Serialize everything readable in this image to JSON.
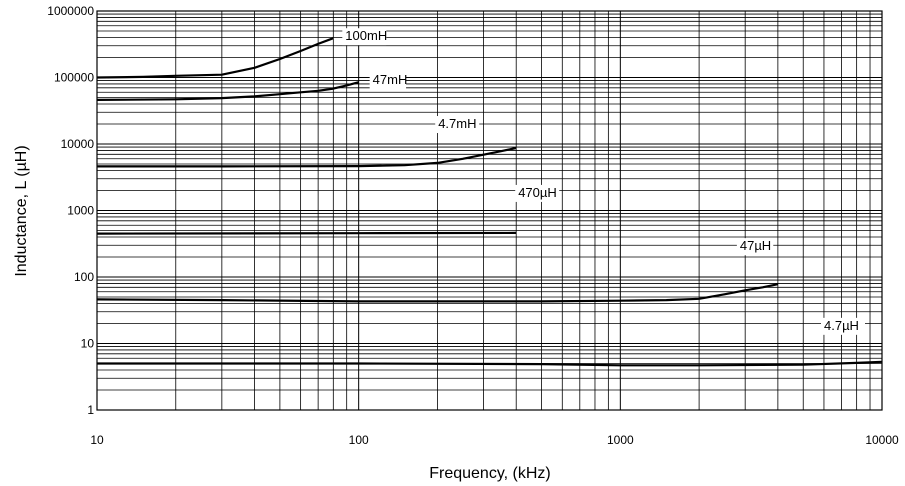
{
  "chart_data": {
    "type": "line",
    "title": "",
    "xlabel": "Frequency, (kHz)",
    "ylabel": "Inductance, L (µH)",
    "xscale": "log",
    "yscale": "log",
    "xlim": [
      10,
      10000
    ],
    "ylim": [
      1,
      1000000
    ],
    "grid": true,
    "legend": "inline labels at series ends",
    "x_ticks": [
      "10",
      "100",
      "1000",
      "10000"
    ],
    "y_ticks": [
      "1",
      "10",
      "100",
      "1000",
      "10000",
      "100000",
      "1000000"
    ],
    "line_color": "#000000",
    "series": [
      {
        "name": "100mH",
        "points": [
          [
            10,
            100000
          ],
          [
            15,
            102000
          ],
          [
            20,
            106000
          ],
          [
            30,
            110000
          ],
          [
            40,
            140000
          ],
          [
            50,
            190000
          ],
          [
            60,
            250000
          ],
          [
            70,
            320000
          ],
          [
            80,
            390000
          ]
        ]
      },
      {
        "name": "47mH",
        "points": [
          [
            10,
            46000
          ],
          [
            20,
            47000
          ],
          [
            30,
            49000
          ],
          [
            40,
            52000
          ],
          [
            50,
            56000
          ],
          [
            60,
            60000
          ],
          [
            70,
            63000
          ],
          [
            80,
            68000
          ],
          [
            90,
            76000
          ],
          [
            100,
            85000
          ]
        ]
      },
      {
        "name": "4.7mH",
        "points": [
          [
            10,
            4600
          ],
          [
            30,
            4600
          ],
          [
            100,
            4650
          ],
          [
            150,
            4800
          ],
          [
            200,
            5200
          ],
          [
            250,
            6000
          ],
          [
            300,
            6900
          ],
          [
            350,
            7800
          ],
          [
            400,
            8700
          ]
        ]
      },
      {
        "name": "470µH",
        "points": [
          [
            10,
            450
          ],
          [
            100,
            455
          ],
          [
            400,
            460
          ]
        ]
      },
      {
        "name": "47µH",
        "points": [
          [
            10,
            46
          ],
          [
            30,
            45
          ],
          [
            100,
            43
          ],
          [
            200,
            43
          ],
          [
            500,
            43
          ],
          [
            1000,
            44
          ],
          [
            1500,
            45
          ],
          [
            2000,
            47
          ],
          [
            2500,
            55
          ],
          [
            3000,
            63
          ],
          [
            3500,
            70
          ],
          [
            4000,
            78
          ]
        ]
      },
      {
        "name": "4.7µH",
        "points": [
          [
            10,
            5
          ],
          [
            100,
            5
          ],
          [
            500,
            4.9
          ],
          [
            1000,
            4.7
          ],
          [
            2000,
            4.7
          ],
          [
            5000,
            4.8
          ],
          [
            8000,
            5.1
          ],
          [
            10000,
            5.3
          ]
        ]
      }
    ]
  }
}
